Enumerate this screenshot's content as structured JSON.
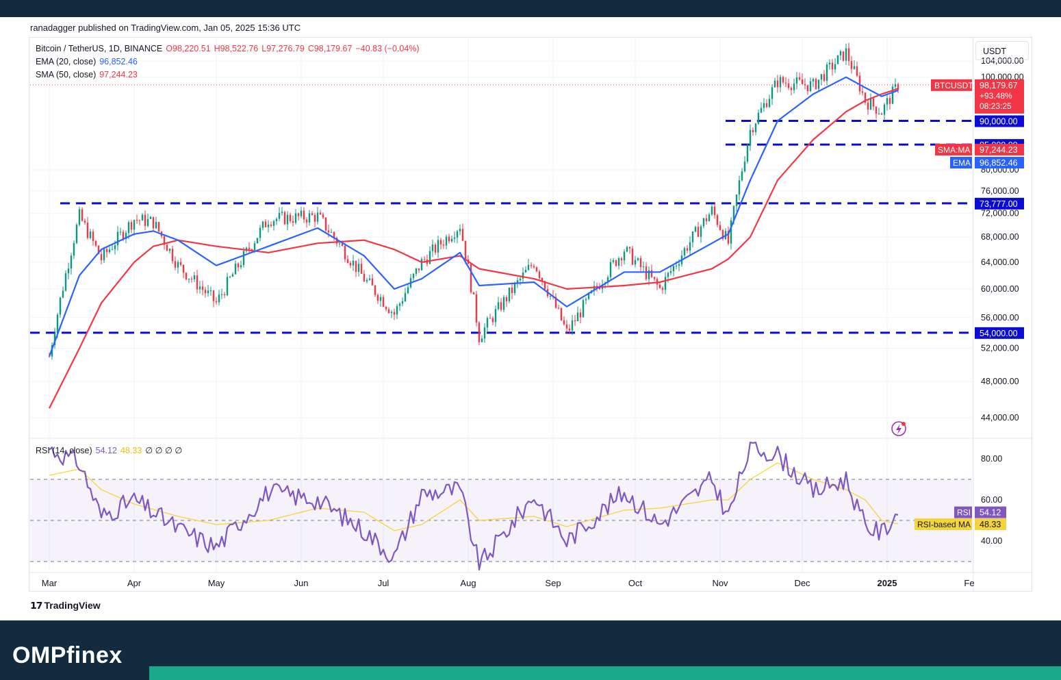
{
  "header": {
    "published": "ranadagger published on TradingView.com, Jan 05, 2025 15:36 UTC"
  },
  "legend": {
    "symbol": "Bitcoin / TetherUS, 1D, BINANCE",
    "open": "O98,220.51",
    "high": "H98,522.76",
    "low": "L97,276.79",
    "close": "C98,179.67",
    "change": "−40.83 (−0.04%)",
    "ema_label": "EMA (20, close)",
    "ema_value": "96,852.46",
    "sma_label": "SMA (50, close)",
    "sma_value": "97,244.23",
    "rsi_label": "RSI (14, close)",
    "rsi_value": "54.12",
    "rsi_ma_value": "48.33",
    "rsi_extra": "∅ ∅ ∅ ∅"
  },
  "currency": "USDT",
  "colors": {
    "up": "#089981",
    "down": "#f23645",
    "ema": "#2962ff",
    "sma": "#f23645",
    "level": "#0b0bd6",
    "rsi": "#7e57c2",
    "rsi_ma": "#f5d43b",
    "label_dark": "#0b0bd6"
  },
  "price_axis": {
    "ticks": [
      "104,000.00",
      "100,000.00",
      "80,000.00",
      "76,000.00",
      "72,000.00",
      "68,000.00",
      "64,000.00",
      "60,000.00",
      "56,000.00",
      "52,000.00",
      "48,000.00",
      "44,000.00"
    ],
    "last_price_tag": {
      "name": "BTCUSDT",
      "price": "98,179.67",
      "change": "+93.48%",
      "countdown": "08:23:25"
    },
    "sma_tag": {
      "name": "SMA:MA",
      "value": "97,244.23"
    },
    "ema_tag": {
      "name": "EMA",
      "value": "96,852.46"
    }
  },
  "rsi_axis": {
    "ticks": [
      "80.00",
      "60.00",
      "40.00"
    ],
    "rsi_tag": {
      "name": "RSI",
      "value": "54.12"
    },
    "rsi_ma_tag": {
      "name": "RSI-based MA",
      "value": "48.33"
    }
  },
  "time_axis": [
    "Mar",
    "Apr",
    "May",
    "Jun",
    "Jul",
    "Aug",
    "Sep",
    "Oct",
    "Nov",
    "Dec",
    "2025",
    "Fe"
  ],
  "footer": {
    "tradingview": "TradingView",
    "brand": "OMPfinex"
  },
  "chart_data": [
    {
      "type": "line",
      "title": "Bitcoin / TetherUS, 1D, BINANCE",
      "series": [
        {
          "name": "close",
          "x": [
            "2024-03-01",
            "2024-03-12",
            "2024-03-20",
            "2024-04-01",
            "2024-04-08",
            "2024-04-17",
            "2024-05-01",
            "2024-05-20",
            "2024-06-07",
            "2024-06-24",
            "2024-07-05",
            "2024-07-15",
            "2024-07-29",
            "2024-08-05",
            "2024-08-25",
            "2024-09-06",
            "2024-09-27",
            "2024-10-10",
            "2024-10-29",
            "2024-11-04",
            "2024-11-12",
            "2024-11-22",
            "2024-12-05",
            "2024-12-17",
            "2024-12-24",
            "2024-12-30",
            "2025-01-05"
          ],
          "values": [
            51000,
            71500,
            64500,
            71000,
            70500,
            63500,
            58000,
            71000,
            71500,
            61500,
            56500,
            64000,
            70000,
            53500,
            64000,
            54000,
            66000,
            60000,
            72500,
            67000,
            88000,
            99000,
            98000,
            106200,
            94500,
            92000,
            98180
          ]
        },
        {
          "name": "EMA (20, close)",
          "values": [
            51000,
            62000,
            66000,
            68500,
            69000,
            67500,
            63500,
            66500,
            69500,
            65000,
            60000,
            61500,
            65500,
            60500,
            61000,
            57500,
            62500,
            62500,
            67000,
            68500,
            78000,
            90000,
            96000,
            100000,
            97500,
            95500,
            96852
          ]
        },
        {
          "name": "SMA (50, close)",
          "values": [
            45000,
            52000,
            58000,
            64000,
            66500,
            67500,
            66500,
            65500,
            67000,
            67500,
            66000,
            64000,
            65000,
            63000,
            61500,
            60000,
            60500,
            61000,
            63000,
            64500,
            68000,
            78000,
            86000,
            92000,
            94500,
            96000,
            97244
          ]
        }
      ],
      "levels": [
        "73,777.00",
        "54,000.00",
        "85,000.00",
        "90,000.00"
      ],
      "y_scale": "log",
      "ylim": [
        42000,
        110000
      ]
    },
    {
      "type": "line",
      "title": "RSI (14, close)",
      "series": [
        {
          "name": "RSI",
          "x": [
            "2024-03-01",
            "2024-03-12",
            "2024-03-20",
            "2024-04-01",
            "2024-04-17",
            "2024-05-01",
            "2024-05-20",
            "2024-06-07",
            "2024-06-24",
            "2024-07-05",
            "2024-07-15",
            "2024-07-29",
            "2024-08-05",
            "2024-08-25",
            "2024-09-06",
            "2024-09-27",
            "2024-10-10",
            "2024-10-29",
            "2024-11-04",
            "2024-11-12",
            "2024-11-22",
            "2024-12-05",
            "2024-12-17",
            "2024-12-24",
            "2024-12-30",
            "2025-01-05"
          ],
          "values": [
            85,
            78,
            52,
            60,
            46,
            37,
            64,
            60,
            45,
            32,
            63,
            65,
            28,
            62,
            40,
            64,
            48,
            70,
            52,
            86,
            82,
            64,
            70,
            47,
            44,
            54.12
          ]
        },
        {
          "name": "RSI-based MA",
          "values": [
            72,
            75,
            65,
            58,
            52,
            48,
            50,
            56,
            54,
            45,
            48,
            60,
            50,
            52,
            47,
            55,
            56,
            60,
            60,
            70,
            78,
            70,
            65,
            60,
            50,
            48.33
          ]
        }
      ],
      "ylim": [
        25,
        90
      ]
    }
  ]
}
